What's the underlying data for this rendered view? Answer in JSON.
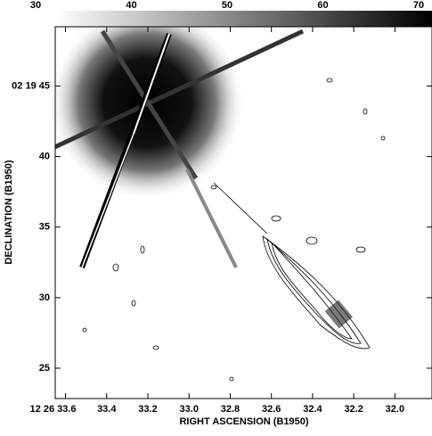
{
  "chart_data": {
    "type": "image",
    "colorbar": {
      "lim": [
        30,
        70
      ],
      "ticks": [
        30,
        40,
        50,
        60,
        70
      ]
    },
    "x_label": "RIGHT ASCENSION (B1950)",
    "y_label": "DECLINATION (B1950)",
    "xlim": [
      33.65,
      31.82
    ],
    "xticks": [
      {
        "value": 33.6,
        "label": "12 26 33.6"
      },
      33.4,
      33.2,
      {
        "value": 33.0,
        "label": "33.0"
      },
      32.8,
      32.6,
      32.4,
      32.2,
      {
        "value": 32.0,
        "label": "32.0"
      }
    ],
    "ylim": [
      22.85,
      49.2
    ],
    "yticks": [
      {
        "value": 45,
        "label": "02 19 45"
      },
      40,
      35,
      30,
      25
    ]
  }
}
